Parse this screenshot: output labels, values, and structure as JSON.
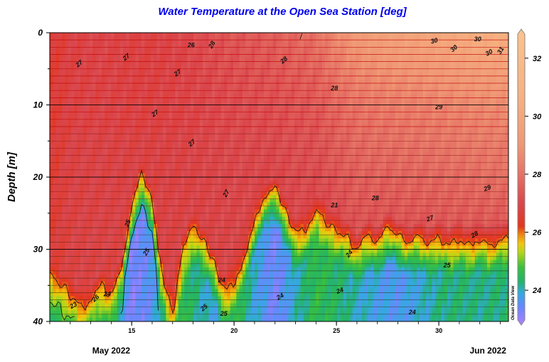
{
  "chart_data": {
    "type": "heatmap",
    "title": "Water Temperature at the Open Sea Station [deg]",
    "ylabel": "Depth [m]",
    "xlabel": "",
    "ylim": [
      0,
      40
    ],
    "y_reversed": true,
    "y_ticks": [
      0,
      10,
      20,
      30,
      40
    ],
    "x_range_days": [
      11,
      33.4
    ],
    "x_ticks": [
      {
        "day": 15,
        "label": "15"
      },
      {
        "day": 20,
        "label": "20"
      },
      {
        "day": 25,
        "label": "25"
      },
      {
        "day": 30,
        "label": "30"
      }
    ],
    "month_labels": [
      {
        "day": 14,
        "label": "May 2022"
      },
      {
        "day": 32.4,
        "label": "Jun 2022"
      }
    ],
    "colorbar": {
      "range": [
        22.8,
        33.0
      ],
      "ticks": [
        24,
        26,
        28,
        30,
        32
      ],
      "stops": [
        {
          "value": 22.8,
          "color": "#b17fff"
        },
        {
          "value": 23.4,
          "color": "#6a86ff"
        },
        {
          "value": 23.9,
          "color": "#34a9e0"
        },
        {
          "value": 24.3,
          "color": "#23b36b"
        },
        {
          "value": 24.8,
          "color": "#3ac03e"
        },
        {
          "value": 25.3,
          "color": "#b4d617"
        },
        {
          "value": 25.6,
          "color": "#f2c70d"
        },
        {
          "value": 25.9,
          "color": "#f08a0c"
        },
        {
          "value": 26.2,
          "color": "#e4361c"
        },
        {
          "value": 27.0,
          "color": "#d9464d"
        },
        {
          "value": 28.0,
          "color": "#e67265"
        },
        {
          "value": 29.0,
          "color": "#ef9775"
        },
        {
          "value": 30.5,
          "color": "#f6af80"
        },
        {
          "value": 33.0,
          "color": "#fcc48f"
        }
      ]
    },
    "surface_temperature": {
      "days": [
        11,
        12,
        13,
        14,
        15,
        16,
        17,
        18,
        19,
        20,
        21,
        22,
        23,
        24,
        25,
        26,
        27,
        28,
        29,
        30,
        31,
        32,
        33.4
      ],
      "values": [
        26.6,
        26.9,
        27.0,
        27.0,
        26.9,
        26.9,
        27.0,
        27.1,
        27.3,
        27.4,
        27.5,
        27.6,
        27.8,
        28.0,
        28.7,
        29.3,
        29.6,
        29.8,
        29.9,
        30.1,
        30.3,
        30.5,
        30.6
      ]
    },
    "thermocline_depth_m": {
      "days": [
        11,
        11.5,
        12,
        12.5,
        13,
        13.5,
        14,
        14.5,
        15,
        15.5,
        16,
        16.5,
        17,
        17.5,
        18,
        18.5,
        19,
        19.5,
        20,
        20.5,
        21,
        21.5,
        22,
        22.5,
        23,
        23.5,
        24,
        24.5,
        25,
        25.5,
        26,
        26.5,
        27,
        27.5,
        28,
        28.5,
        29,
        29.5,
        30,
        30.5,
        31,
        31.5,
        32,
        32.5,
        33,
        33.4
      ],
      "values": [
        34,
        35,
        36,
        38,
        37,
        35,
        36,
        33,
        25,
        20,
        24,
        34,
        38,
        30,
        27,
        29,
        32,
        36,
        34,
        31,
        26,
        23,
        22,
        25,
        28,
        27,
        24,
        26,
        27,
        28,
        30,
        28,
        29,
        27,
        28,
        29,
        28,
        29,
        28,
        29,
        28,
        29,
        28,
        29,
        28,
        28
      ]
    },
    "deep_temperature": {
      "days": [
        11,
        12,
        13,
        14,
        15,
        16,
        17,
        18,
        19,
        20,
        21,
        22,
        23,
        24,
        25,
        26,
        27,
        28,
        29,
        30,
        31,
        32,
        33.4
      ],
      "values": [
        24.5,
        24.6,
        24.4,
        24.6,
        23.2,
        23.6,
        25.0,
        24.3,
        23.8,
        24.7,
        23.9,
        23.3,
        24.0,
        24.6,
        24.4,
        24.0,
        23.8,
        23.6,
        23.9,
        24.2,
        24.3,
        24.2,
        24.3
      ]
    },
    "contour_labels": [
      {
        "label": "27",
        "day": 12.5,
        "depth": 4.5,
        "angle": -40
      },
      {
        "label": "27",
        "day": 14.8,
        "depth": 3.6,
        "angle": -40
      },
      {
        "label": "27",
        "day": 17.3,
        "depth": 5.8,
        "angle": -35
      },
      {
        "label": "27",
        "day": 16.2,
        "depth": 11.4,
        "angle": -35
      },
      {
        "label": "27",
        "day": 18.0,
        "depth": 15.5,
        "angle": -40
      },
      {
        "label": "27",
        "day": 19.7,
        "depth": 22.4,
        "angle": -60
      },
      {
        "label": "27",
        "day": 29.6,
        "depth": 26.0,
        "angle": -20
      },
      {
        "label": "26",
        "day": 17.9,
        "depth": 2.0,
        "angle": 0
      },
      {
        "label": "28",
        "day": 19.0,
        "depth": 1.8,
        "angle": -60
      },
      {
        "label": "28",
        "day": 22.5,
        "depth": 4.0,
        "angle": -40
      },
      {
        "label": "28",
        "day": 24.9,
        "depth": 8.0,
        "angle": 0
      },
      {
        "label": "28",
        "day": 26.9,
        "depth": 23.2,
        "angle": 0
      },
      {
        "label": "28",
        "day": 31.8,
        "depth": 28.2,
        "angle": -30
      },
      {
        "label": "29",
        "day": 30.0,
        "depth": 10.6,
        "angle": 0
      },
      {
        "label": "29",
        "day": 32.4,
        "depth": 21.8,
        "angle": -20
      },
      {
        "label": "30",
        "day": 29.8,
        "depth": 1.4,
        "angle": -15
      },
      {
        "label": "30",
        "day": 30.8,
        "depth": 2.4,
        "angle": -40
      },
      {
        "label": "30",
        "day": 31.9,
        "depth": 1.2,
        "angle": 0
      },
      {
        "label": "30",
        "day": 32.5,
        "depth": 3.0,
        "angle": -30
      },
      {
        "label": "31",
        "day": 33.1,
        "depth": 2.6,
        "angle": -60
      },
      {
        "label": "21",
        "day": 24.9,
        "depth": 24.2,
        "angle": 0
      },
      {
        "label": "24",
        "day": 19.4,
        "depth": 34.6,
        "angle": 0
      },
      {
        "label": "24",
        "day": 22.3,
        "depth": 36.8,
        "angle": -30
      },
      {
        "label": "24",
        "day": 25.7,
        "depth": 30.8,
        "angle": -50
      },
      {
        "label": "24",
        "day": 25.2,
        "depth": 36.0,
        "angle": -20
      },
      {
        "label": "24",
        "day": 28.7,
        "depth": 39.0,
        "angle": 0
      },
      {
        "label": "24",
        "day": 13.8,
        "depth": 36.5,
        "angle": 0
      },
      {
        "label": "25",
        "day": 14.9,
        "depth": 26.5,
        "angle": -70
      },
      {
        "label": "25",
        "day": 15.8,
        "depth": 30.5,
        "angle": -60
      },
      {
        "label": "25",
        "day": 18.6,
        "depth": 38.3,
        "angle": -40
      },
      {
        "label": "25",
        "day": 19.5,
        "depth": 39.2,
        "angle": 0
      },
      {
        "label": "25",
        "day": 30.4,
        "depth": 32.5,
        "angle": 0
      },
      {
        "label": "23",
        "day": 12.2,
        "depth": 38.0,
        "angle": -30
      },
      {
        "label": "26",
        "day": 13.3,
        "depth": 37.0,
        "angle": -40
      }
    ]
  },
  "credit": "Ocean Data View"
}
